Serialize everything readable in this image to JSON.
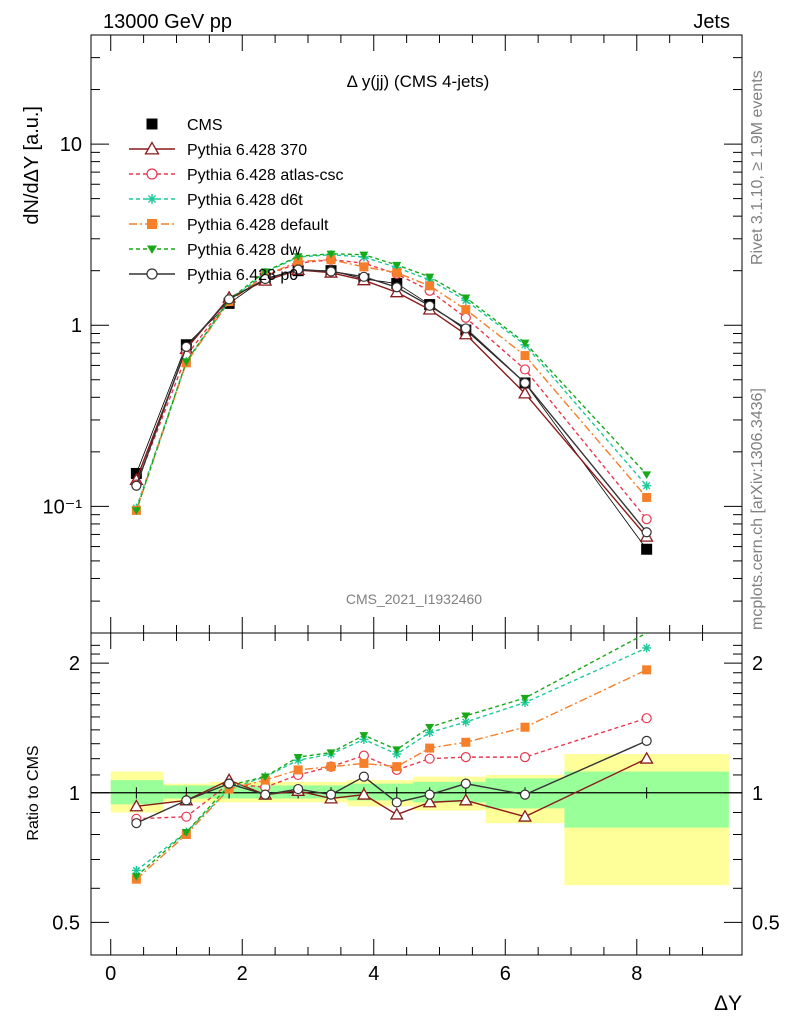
{
  "header": {
    "left": "13000 GeV pp",
    "right": "Jets"
  },
  "side_texts": {
    "rivet": "Rivet 3.1.10, ≥ 1.9M events",
    "source": "mcplots.cern.ch [arXiv:1306.3436]"
  },
  "analysis_label": "CMS_2021_I1932460",
  "chart_data": [
    {
      "type": "line",
      "panel": "main",
      "title": "Δ y(jj) (CMS 4-jets)",
      "xlabel": "",
      "ylabel": "dN/dΔY [a.u.]",
      "yscale": "log",
      "xlim": [
        -0.3,
        9.6
      ],
      "ylim": [
        0.02,
        40
      ],
      "x_ticks": [
        0,
        2,
        4,
        6,
        8
      ],
      "y_tick_labels": [
        "10⁻¹",
        "1",
        "10"
      ],
      "x": [
        0.39,
        1.15,
        1.8,
        2.35,
        2.85,
        3.35,
        3.85,
        4.35,
        4.85,
        5.4,
        6.3,
        8.15
      ],
      "legend_position": "top-left",
      "series": [
        {
          "name": "CMS",
          "color": "#000000",
          "marker": "square",
          "dash": "none",
          "values": [
            0.152,
            0.78,
            1.32,
            1.82,
            2.0,
            2.0,
            1.8,
            1.7,
            1.3,
            0.94,
            0.48,
            0.058
          ]
        },
        {
          "name": "Pythia 6.428 370",
          "color": "#8b1a1a",
          "marker": "triangle-open",
          "dash": "none",
          "values": [
            0.14,
            0.74,
            1.42,
            1.76,
            2.02,
            1.95,
            1.77,
            1.52,
            1.22,
            0.89,
            0.42,
            0.068
          ]
        },
        {
          "name": "Pythia 6.428 atlas-csc",
          "color": "#e8384f",
          "marker": "circle-open",
          "dash": "4,3",
          "values": [
            0.132,
            0.68,
            1.38,
            1.88,
            2.2,
            2.3,
            2.2,
            1.92,
            1.55,
            1.1,
            0.57,
            0.085
          ]
        },
        {
          "name": "Pythia 6.428 d6t",
          "color": "#1fc99a",
          "marker": "star",
          "dash": "4,3",
          "values": [
            0.098,
            0.63,
            1.35,
            1.95,
            2.38,
            2.45,
            2.38,
            2.08,
            1.78,
            1.37,
            0.78,
            0.13
          ]
        },
        {
          "name": "Pythia 6.428 default",
          "color": "#f57f2a",
          "marker": "square",
          "dash": "8,3,2,3",
          "values": [
            0.095,
            0.62,
            1.35,
            1.88,
            2.25,
            2.3,
            2.1,
            1.95,
            1.65,
            1.22,
            0.68,
            0.112
          ]
        },
        {
          "name": "Pythia 6.428 dw",
          "color": "#18a818",
          "marker": "triangle-down",
          "dash": "4,3",
          "values": [
            0.095,
            0.63,
            1.38,
            1.98,
            2.4,
            2.48,
            2.45,
            2.15,
            1.85,
            1.42,
            0.8,
            0.15
          ]
        },
        {
          "name": "Pythia 6.428 p0",
          "color": "#333333",
          "marker": "circle-open",
          "dash": "none",
          "values": [
            0.13,
            0.76,
            1.39,
            1.8,
            2.03,
            1.98,
            1.85,
            1.62,
            1.28,
            0.96,
            0.48,
            0.072
          ]
        }
      ]
    },
    {
      "type": "line",
      "panel": "ratio",
      "xlabel": "ΔY",
      "ylabel": "Ratio to CMS",
      "yscale": "log",
      "xlim": [
        -0.3,
        9.6
      ],
      "ylim": [
        0.42,
        2.35
      ],
      "x_ticks": [
        0,
        2,
        4,
        6,
        8
      ],
      "y_ticks": [
        0.5,
        1,
        2
      ],
      "reference": 1,
      "x": [
        0.39,
        1.15,
        1.8,
        2.35,
        2.85,
        3.35,
        3.85,
        4.35,
        4.85,
        5.4,
        6.3,
        8.15
      ],
      "bands": [
        {
          "x0": 0.0,
          "x1": 0.8,
          "y1_lo": 0.94,
          "y1_hi": 1.07,
          "y2_lo": 0.9,
          "y2_hi": 1.12
        },
        {
          "x0": 0.8,
          "x1": 1.5,
          "y1_lo": 0.97,
          "y1_hi": 1.04,
          "y2_lo": 0.95,
          "y2_hi": 1.05
        },
        {
          "x0": 1.5,
          "x1": 2.6,
          "y1_lo": 0.97,
          "y1_hi": 1.04,
          "y2_lo": 0.95,
          "y2_hi": 1.06
        },
        {
          "x0": 2.6,
          "x1": 3.6,
          "y1_lo": 0.97,
          "y1_hi": 1.04,
          "y2_lo": 0.95,
          "y2_hi": 1.06
        },
        {
          "x0": 3.6,
          "x1": 4.6,
          "y1_lo": 0.96,
          "y1_hi": 1.05,
          "y2_lo": 0.93,
          "y2_hi": 1.07
        },
        {
          "x0": 4.6,
          "x1": 5.7,
          "y1_lo": 0.95,
          "y1_hi": 1.06,
          "y2_lo": 0.91,
          "y2_hi": 1.09
        },
        {
          "x0": 5.7,
          "x1": 6.9,
          "y1_lo": 0.92,
          "y1_hi": 1.08,
          "y2_lo": 0.85,
          "y2_hi": 1.1
        },
        {
          "x0": 6.9,
          "x1": 9.4,
          "y1_lo": 0.83,
          "y1_hi": 1.12,
          "y2_lo": 0.61,
          "y2_hi": 1.23
        }
      ],
      "series": [
        {
          "name": "Pythia 6.428 370",
          "color": "#8b1a1a",
          "marker": "triangle-open",
          "dash": "none",
          "values": [
            0.93,
            0.96,
            1.07,
            0.99,
            1.01,
            0.97,
            0.99,
            0.89,
            0.95,
            0.96,
            0.88,
            1.2
          ]
        },
        {
          "name": "Pythia 6.428 atlas-csc",
          "color": "#e8384f",
          "marker": "circle-open",
          "dash": "4,3",
          "values": [
            0.87,
            0.88,
            1.05,
            1.03,
            1.1,
            1.15,
            1.22,
            1.13,
            1.2,
            1.21,
            1.21,
            1.49
          ]
        },
        {
          "name": "Pythia 6.428 d6t",
          "color": "#1fc99a",
          "marker": "star",
          "dash": "4,3",
          "values": [
            0.66,
            0.81,
            1.02,
            1.09,
            1.19,
            1.23,
            1.33,
            1.23,
            1.38,
            1.46,
            1.62,
            2.17
          ]
        },
        {
          "name": "Pythia 6.428 default",
          "color": "#f57f2a",
          "marker": "square",
          "dash": "8,3,2,3",
          "values": [
            0.63,
            0.8,
            1.02,
            1.07,
            1.13,
            1.15,
            1.17,
            1.15,
            1.27,
            1.31,
            1.42,
            1.93
          ]
        },
        {
          "name": "Pythia 6.428 dw",
          "color": "#18a818",
          "marker": "triangle-down",
          "dash": "4,3",
          "values": [
            0.64,
            0.81,
            1.04,
            1.09,
            1.21,
            1.24,
            1.36,
            1.26,
            1.42,
            1.51,
            1.66,
            2.35
          ]
        },
        {
          "name": "Pythia 6.428 p0",
          "color": "#333333",
          "marker": "circle-open",
          "dash": "none",
          "values": [
            0.85,
            0.96,
            1.05,
            0.99,
            1.02,
            0.99,
            1.09,
            0.95,
            0.99,
            1.05,
            0.99,
            1.32
          ]
        }
      ]
    }
  ]
}
